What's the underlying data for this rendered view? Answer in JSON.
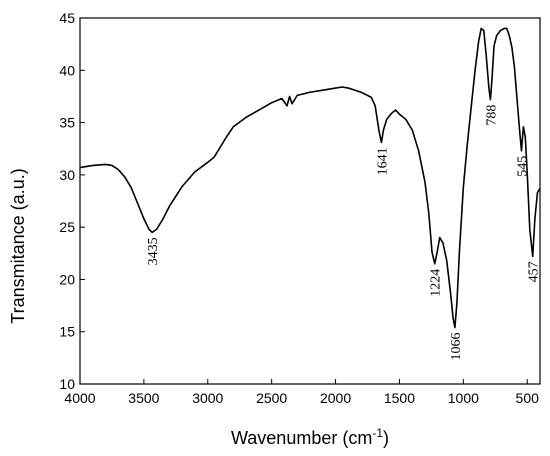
{
  "chart_data": {
    "type": "line",
    "title": "",
    "xlabel": "Wavenumber (cm",
    "xlabel_sup": "-1",
    "xlabel_suffix": ")",
    "ylabel": "Transmitance (a.u.)",
    "xlim": [
      4000,
      400
    ],
    "ylim": [
      10,
      45
    ],
    "x_ticks": [
      4000,
      3500,
      3000,
      2500,
      2000,
      1500,
      1000,
      500
    ],
    "x_tick_labels": [
      "4000",
      "3500",
      "3000",
      "2500",
      "2000",
      "1500",
      "1000",
      "500"
    ],
    "y_ticks": [
      10,
      15,
      20,
      25,
      30,
      35,
      40,
      45
    ],
    "y_tick_labels": [
      "10",
      "15",
      "20",
      "25",
      "30",
      "35",
      "40",
      "45"
    ],
    "grid": false,
    "series": [
      {
        "points": [
          [
            4000,
            30.7
          ],
          [
            3900,
            30.9
          ],
          [
            3800,
            31.0
          ],
          [
            3750,
            30.9
          ],
          [
            3700,
            30.5
          ],
          [
            3650,
            29.8
          ],
          [
            3600,
            28.8
          ],
          [
            3550,
            27.3
          ],
          [
            3500,
            25.8
          ],
          [
            3460,
            24.8
          ],
          [
            3435,
            24.5
          ],
          [
            3400,
            24.8
          ],
          [
            3350,
            25.8
          ],
          [
            3300,
            27.0
          ],
          [
            3200,
            28.9
          ],
          [
            3100,
            30.3
          ],
          [
            3000,
            31.2
          ],
          [
            2950,
            31.7
          ],
          [
            2900,
            32.7
          ],
          [
            2850,
            33.7
          ],
          [
            2800,
            34.6
          ],
          [
            2700,
            35.5
          ],
          [
            2600,
            36.2
          ],
          [
            2500,
            36.9
          ],
          [
            2420,
            37.3
          ],
          [
            2380,
            36.6
          ],
          [
            2360,
            37.5
          ],
          [
            2340,
            36.8
          ],
          [
            2300,
            37.6
          ],
          [
            2200,
            37.9
          ],
          [
            2100,
            38.1
          ],
          [
            2000,
            38.3
          ],
          [
            1950,
            38.4
          ],
          [
            1900,
            38.3
          ],
          [
            1850,
            38.1
          ],
          [
            1800,
            37.9
          ],
          [
            1750,
            37.6
          ],
          [
            1720,
            37.4
          ],
          [
            1690,
            36.6
          ],
          [
            1660,
            34.2
          ],
          [
            1641,
            33.1
          ],
          [
            1625,
            34.3
          ],
          [
            1600,
            35.3
          ],
          [
            1560,
            35.9
          ],
          [
            1530,
            36.2
          ],
          [
            1500,
            35.8
          ],
          [
            1450,
            35.3
          ],
          [
            1400,
            34.3
          ],
          [
            1350,
            32.3
          ],
          [
            1300,
            29.3
          ],
          [
            1270,
            26.3
          ],
          [
            1245,
            22.6
          ],
          [
            1224,
            21.5
          ],
          [
            1205,
            22.6
          ],
          [
            1185,
            24.0
          ],
          [
            1160,
            23.5
          ],
          [
            1130,
            21.8
          ],
          [
            1100,
            18.7
          ],
          [
            1080,
            16.3
          ],
          [
            1066,
            15.4
          ],
          [
            1050,
            17.8
          ],
          [
            1030,
            22.8
          ],
          [
            1000,
            28.8
          ],
          [
            970,
            32.8
          ],
          [
            940,
            36.3
          ],
          [
            910,
            39.8
          ],
          [
            880,
            42.8
          ],
          [
            860,
            44.0
          ],
          [
            840,
            43.8
          ],
          [
            820,
            41.3
          ],
          [
            800,
            38.3
          ],
          [
            788,
            37.2
          ],
          [
            775,
            39.3
          ],
          [
            760,
            42.3
          ],
          [
            740,
            43.3
          ],
          [
            710,
            43.8
          ],
          [
            680,
            44.0
          ],
          [
            660,
            44.0
          ],
          [
            640,
            43.3
          ],
          [
            620,
            42.2
          ],
          [
            600,
            40.3
          ],
          [
            580,
            37.3
          ],
          [
            560,
            34.3
          ],
          [
            545,
            32.3
          ],
          [
            530,
            34.6
          ],
          [
            515,
            33.6
          ],
          [
            500,
            30.2
          ],
          [
            480,
            24.8
          ],
          [
            457,
            22.2
          ],
          [
            440,
            25.8
          ],
          [
            420,
            28.3
          ],
          [
            400,
            28.7
          ]
        ]
      }
    ],
    "annotations": [
      {
        "text": "3435",
        "x": 3435,
        "y": 24.5
      },
      {
        "text": "1641",
        "x": 1641,
        "y": 33.1
      },
      {
        "text": "1224",
        "x": 1224,
        "y": 21.5
      },
      {
        "text": "1066",
        "x": 1066,
        "y": 15.4
      },
      {
        "text": "788",
        "x": 788,
        "y": 37.2
      },
      {
        "text": "545",
        "x": 545,
        "y": 32.3
      },
      {
        "text": "457",
        "x": 457,
        "y": 22.2
      }
    ]
  }
}
